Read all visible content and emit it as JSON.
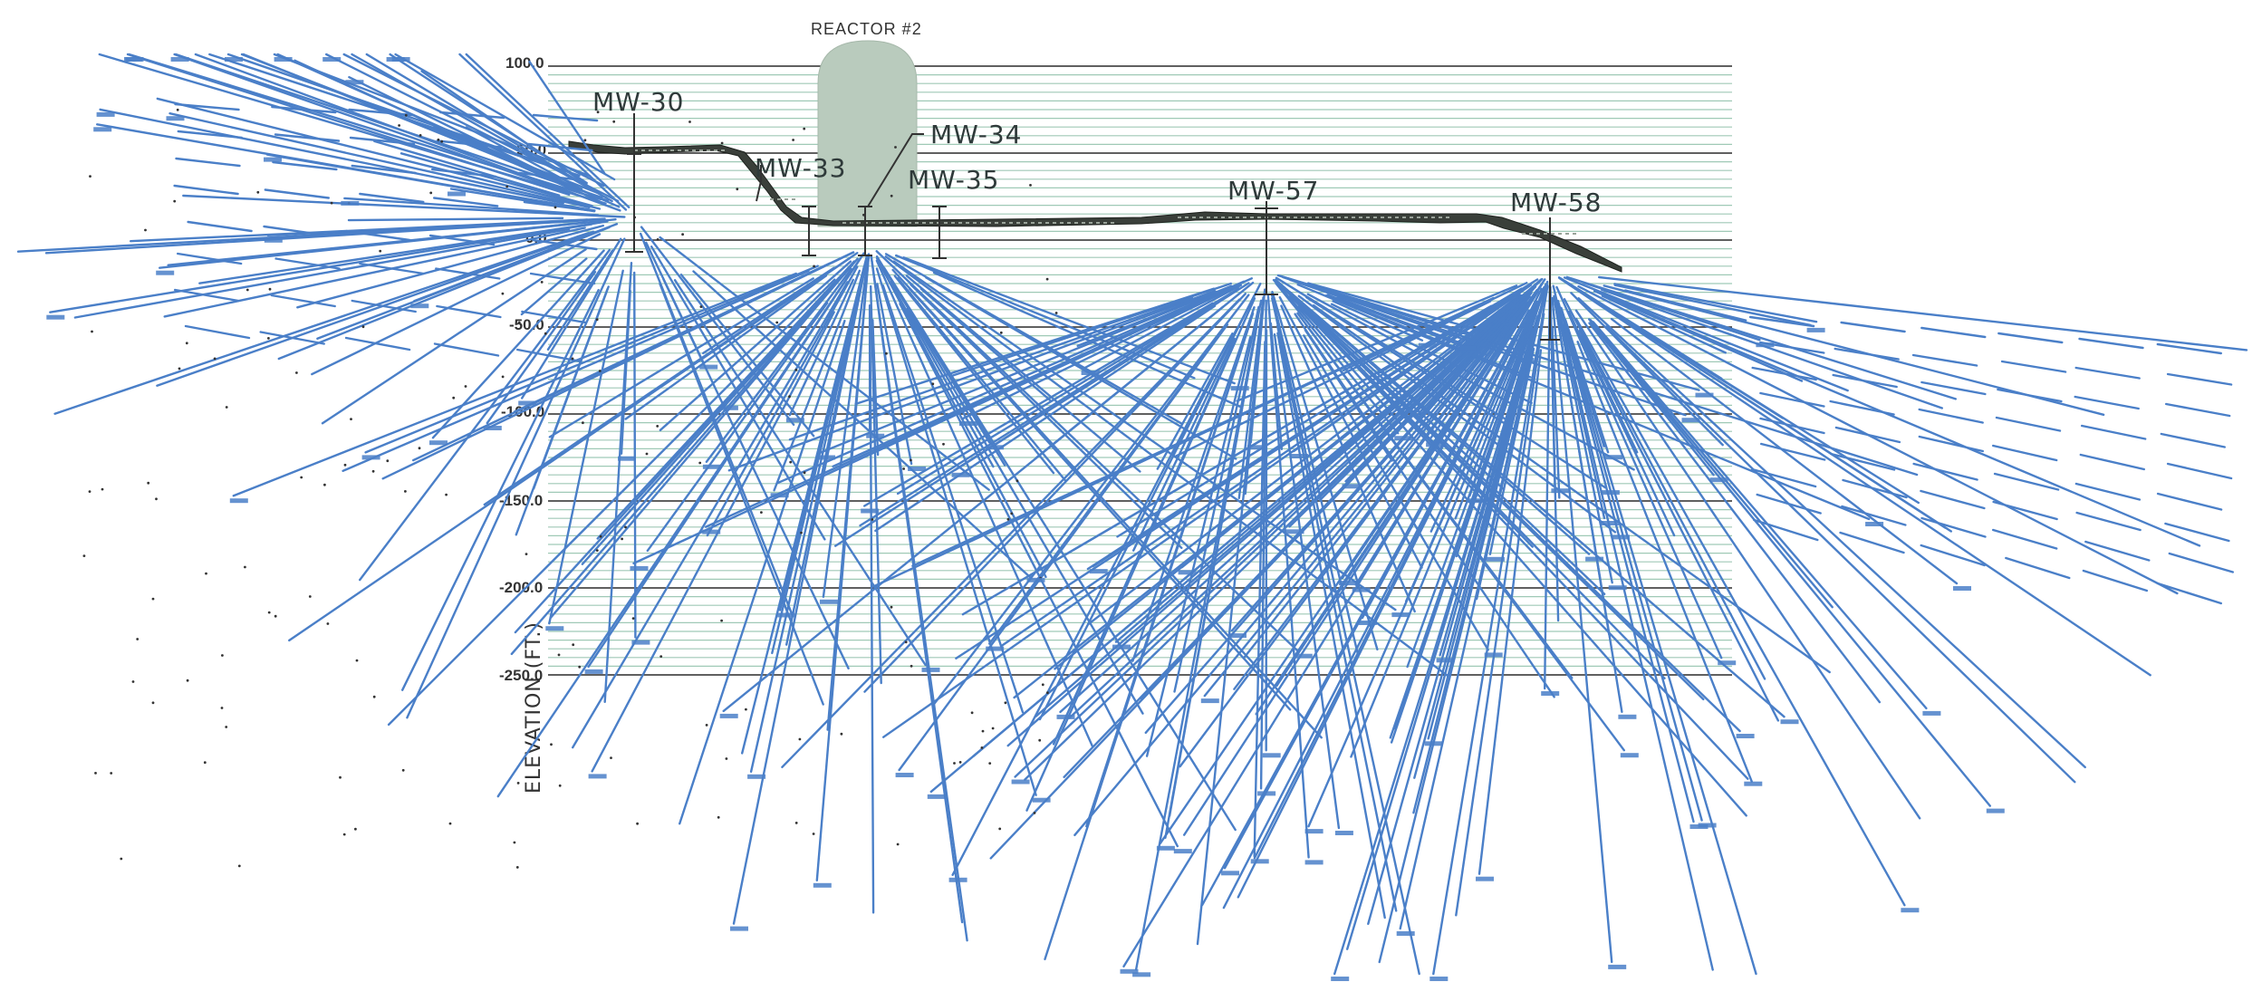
{
  "reactor": {
    "label": "REACTOR #2"
  },
  "elevation_labels": [
    "100.0",
    "50.0",
    "0.0",
    "-50.0",
    "-100.0",
    "-150.0",
    "-200.0",
    "-250.0"
  ],
  "axis_title": "ELEVATION (FT.)",
  "wells": [
    {
      "id": "mw30",
      "label": "MW-30"
    },
    {
      "id": "mw33",
      "label": "MW-33"
    },
    {
      "id": "mw34",
      "label": "MW-34"
    },
    {
      "id": "mw35",
      "label": "MW-35"
    },
    {
      "id": "mw57",
      "label": "MW-57"
    },
    {
      "id": "mw58",
      "label": "MW-58"
    }
  ],
  "colors": {
    "fracture_lines": "#4a7fc8",
    "major_grid": "#2b2b2b",
    "minor_grid": "#9fc9b6",
    "reactor_fill": "#b9cbbd",
    "fill_material": "#3a3f3a"
  }
}
